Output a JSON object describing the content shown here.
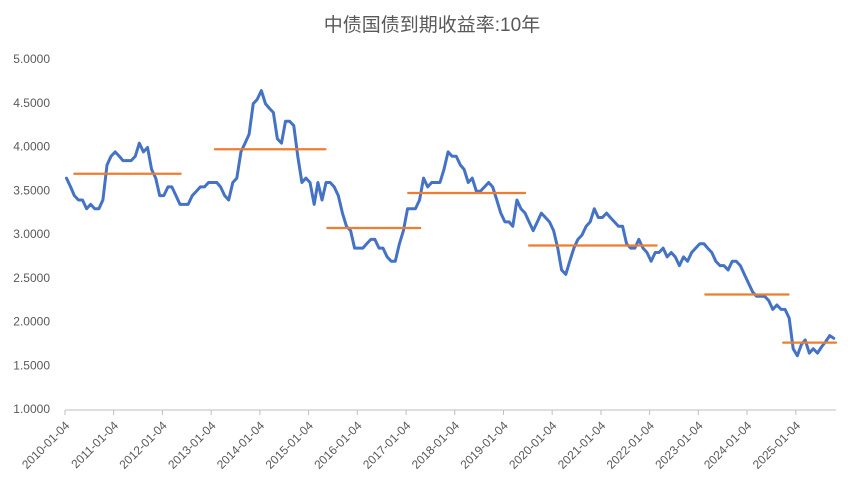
{
  "chart_data": {
    "type": "line",
    "title": "中债国债到期收益率:10年",
    "xlim": [
      "2010-01-04",
      "2025-11-01"
    ],
    "xticks": [
      "2010-01-04",
      "2011-01-04",
      "2012-01-04",
      "2013-01-04",
      "2014-01-04",
      "2015-01-04",
      "2016-01-04",
      "2017-01-04",
      "2018-01-04",
      "2019-01-04",
      "2020-01-04",
      "2021-01-04",
      "2022-01-04",
      "2023-01-04",
      "2024-01-04",
      "2025-01-04"
    ],
    "ylim": [
      1,
      5
    ],
    "yticks": [
      {
        "value": 1,
        "label": "1.0000"
      },
      {
        "value": 1.5,
        "label": "1.5000"
      },
      {
        "value": 2,
        "label": "2.0000"
      },
      {
        "value": 2.5,
        "label": "2.5000"
      },
      {
        "value": 3,
        "label": "3.0000"
      },
      {
        "value": 3.5,
        "label": "3.5000"
      },
      {
        "value": 4,
        "label": "4.0000"
      },
      {
        "value": 4.5,
        "label": "4.5000"
      },
      {
        "value": 5,
        "label": "5.0000"
      }
    ],
    "grid": false,
    "series": [
      {
        "color": "#4472c4",
        "x": [
          "2010-01-15",
          "2010-02-15",
          "2010-03-15",
          "2010-04-15",
          "2010-05-15",
          "2010-06-15",
          "2010-07-15",
          "2010-08-15",
          "2010-09-15",
          "2010-10-15",
          "2010-11-15",
          "2010-12-15",
          "2011-01-15",
          "2011-02-15",
          "2011-03-15",
          "2011-04-15",
          "2011-05-15",
          "2011-06-15",
          "2011-07-15",
          "2011-08-15",
          "2011-09-15",
          "2011-10-15",
          "2011-11-15",
          "2011-12-15",
          "2012-01-15",
          "2012-02-15",
          "2012-03-15",
          "2012-04-15",
          "2012-05-15",
          "2012-06-15",
          "2012-07-15",
          "2012-08-15",
          "2012-09-15",
          "2012-10-15",
          "2012-11-15",
          "2012-12-15",
          "2013-01-15",
          "2013-02-15",
          "2013-03-15",
          "2013-04-15",
          "2013-05-15",
          "2013-06-15",
          "2013-07-15",
          "2013-08-15",
          "2013-09-15",
          "2013-10-15",
          "2013-11-15",
          "2013-12-15",
          "2014-01-15",
          "2014-02-15",
          "2014-03-15",
          "2014-04-15",
          "2014-05-15",
          "2014-06-15",
          "2014-07-15",
          "2014-08-15",
          "2014-09-15",
          "2014-10-15",
          "2014-11-15",
          "2014-12-15",
          "2015-01-15",
          "2015-02-15",
          "2015-03-15",
          "2015-04-15",
          "2015-05-15",
          "2015-06-15",
          "2015-07-15",
          "2015-08-15",
          "2015-09-15",
          "2015-10-15",
          "2015-11-15",
          "2015-12-15",
          "2016-01-15",
          "2016-02-15",
          "2016-03-15",
          "2016-04-15",
          "2016-05-15",
          "2016-06-15",
          "2016-07-15",
          "2016-08-15",
          "2016-09-15",
          "2016-10-15",
          "2016-11-15",
          "2016-12-15",
          "2017-01-15",
          "2017-02-15",
          "2017-03-15",
          "2017-04-15",
          "2017-05-15",
          "2017-06-15",
          "2017-07-15",
          "2017-08-15",
          "2017-09-15",
          "2017-10-15",
          "2017-11-15",
          "2017-12-15",
          "2018-01-15",
          "2018-02-15",
          "2018-03-15",
          "2018-04-15",
          "2018-05-15",
          "2018-06-15",
          "2018-07-15",
          "2018-08-15",
          "2018-09-15",
          "2018-10-15",
          "2018-11-15",
          "2018-12-15",
          "2019-01-15",
          "2019-02-15",
          "2019-03-15",
          "2019-04-15",
          "2019-05-15",
          "2019-06-15",
          "2019-07-15",
          "2019-08-15",
          "2019-09-15",
          "2019-10-15",
          "2019-11-15",
          "2019-12-15",
          "2020-01-15",
          "2020-02-15",
          "2020-03-15",
          "2020-04-15",
          "2020-05-15",
          "2020-06-15",
          "2020-07-15",
          "2020-08-15",
          "2020-09-15",
          "2020-10-15",
          "2020-11-15",
          "2020-12-15",
          "2021-01-15",
          "2021-02-15",
          "2021-03-15",
          "2021-04-15",
          "2021-05-15",
          "2021-06-15",
          "2021-07-15",
          "2021-08-15",
          "2021-09-15",
          "2021-10-15",
          "2021-11-15",
          "2021-12-15",
          "2022-01-15",
          "2022-02-15",
          "2022-03-15",
          "2022-04-15",
          "2022-05-15",
          "2022-06-15",
          "2022-07-15",
          "2022-08-15",
          "2022-09-15",
          "2022-10-15",
          "2022-11-15",
          "2022-12-15",
          "2023-01-15",
          "2023-02-15",
          "2023-03-15",
          "2023-04-15",
          "2023-05-15",
          "2023-06-15",
          "2023-07-15",
          "2023-08-15",
          "2023-09-15",
          "2023-10-15",
          "2023-11-15",
          "2023-12-15",
          "2024-01-15",
          "2024-02-15",
          "2024-03-15",
          "2024-04-15",
          "2024-05-15",
          "2024-06-15",
          "2024-07-15",
          "2024-08-15",
          "2024-09-15",
          "2024-10-15",
          "2024-11-15",
          "2024-12-15",
          "2025-01-15",
          "2025-02-15",
          "2025-03-15",
          "2025-04-15",
          "2025-05-15",
          "2025-06-15",
          "2025-07-15",
          "2025-08-15",
          "2025-09-15",
          "2025-10-15"
        ],
        "values": [
          3.65,
          3.55,
          3.45,
          3.4,
          3.4,
          3.3,
          3.35,
          3.3,
          3.3,
          3.4,
          3.8,
          3.9,
          3.95,
          3.9,
          3.85,
          3.85,
          3.85,
          3.9,
          4.05,
          3.95,
          4.0,
          3.75,
          3.65,
          3.45,
          3.45,
          3.55,
          3.55,
          3.45,
          3.35,
          3.35,
          3.35,
          3.45,
          3.5,
          3.55,
          3.55,
          3.6,
          3.6,
          3.6,
          3.55,
          3.45,
          3.4,
          3.6,
          3.65,
          3.95,
          4.05,
          4.15,
          4.5,
          4.55,
          4.65,
          4.5,
          4.45,
          4.4,
          4.1,
          4.05,
          4.3,
          4.3,
          4.25,
          3.9,
          3.6,
          3.65,
          3.6,
          3.35,
          3.6,
          3.4,
          3.6,
          3.6,
          3.55,
          3.45,
          3.25,
          3.1,
          3.05,
          2.85,
          2.85,
          2.85,
          2.9,
          2.95,
          2.95,
          2.85,
          2.85,
          2.75,
          2.7,
          2.7,
          2.9,
          3.05,
          3.3,
          3.3,
          3.3,
          3.4,
          3.65,
          3.55,
          3.6,
          3.6,
          3.6,
          3.75,
          3.95,
          3.9,
          3.9,
          3.8,
          3.75,
          3.6,
          3.65,
          3.5,
          3.5,
          3.55,
          3.6,
          3.55,
          3.4,
          3.25,
          3.15,
          3.15,
          3.1,
          3.4,
          3.3,
          3.25,
          3.15,
          3.05,
          3.15,
          3.25,
          3.2,
          3.15,
          3.05,
          2.85,
          2.6,
          2.55,
          2.7,
          2.85,
          2.95,
          3.0,
          3.1,
          3.15,
          3.3,
          3.2,
          3.2,
          3.25,
          3.2,
          3.15,
          3.1,
          3.1,
          2.9,
          2.85,
          2.85,
          2.95,
          2.85,
          2.8,
          2.7,
          2.8,
          2.8,
          2.85,
          2.75,
          2.8,
          2.75,
          2.65,
          2.75,
          2.7,
          2.8,
          2.85,
          2.9,
          2.9,
          2.85,
          2.8,
          2.7,
          2.65,
          2.65,
          2.6,
          2.7,
          2.7,
          2.65,
          2.55,
          2.45,
          2.35,
          2.3,
          2.3,
          2.3,
          2.25,
          2.15,
          2.2,
          2.15,
          2.15,
          2.05,
          1.7,
          1.62,
          1.75,
          1.8,
          1.65,
          1.7,
          1.65,
          1.72,
          1.78,
          1.85,
          1.82
        ]
      },
      {
        "color": "#ed7d31",
        "x": [
          "2010-03-15",
          "2012-05-20"
        ],
        "values": [
          3.7,
          3.7
        ]
      },
      {
        "color": "#ed7d31",
        "x": [
          "2013-02-01",
          "2015-05-10"
        ],
        "values": [
          3.98,
          3.98
        ]
      },
      {
        "color": "#ed7d31",
        "x": [
          "2015-05-25",
          "2017-04-20"
        ],
        "values": [
          3.08,
          3.08
        ]
      },
      {
        "color": "#ed7d31",
        "x": [
          "2017-01-20",
          "2019-06-15"
        ],
        "values": [
          3.48,
          3.48
        ]
      },
      {
        "color": "#ed7d31",
        "x": [
          "2019-07-15",
          "2022-02-25"
        ],
        "values": [
          2.88,
          2.88
        ]
      },
      {
        "color": "#ed7d31",
        "x": [
          "2023-02-25",
          "2024-11-10"
        ],
        "values": [
          2.32,
          2.32
        ]
      },
      {
        "color": "#ed7d31",
        "x": [
          "2024-10-01",
          "2025-11-01"
        ],
        "values": [
          1.77,
          1.77
        ]
      }
    ]
  }
}
